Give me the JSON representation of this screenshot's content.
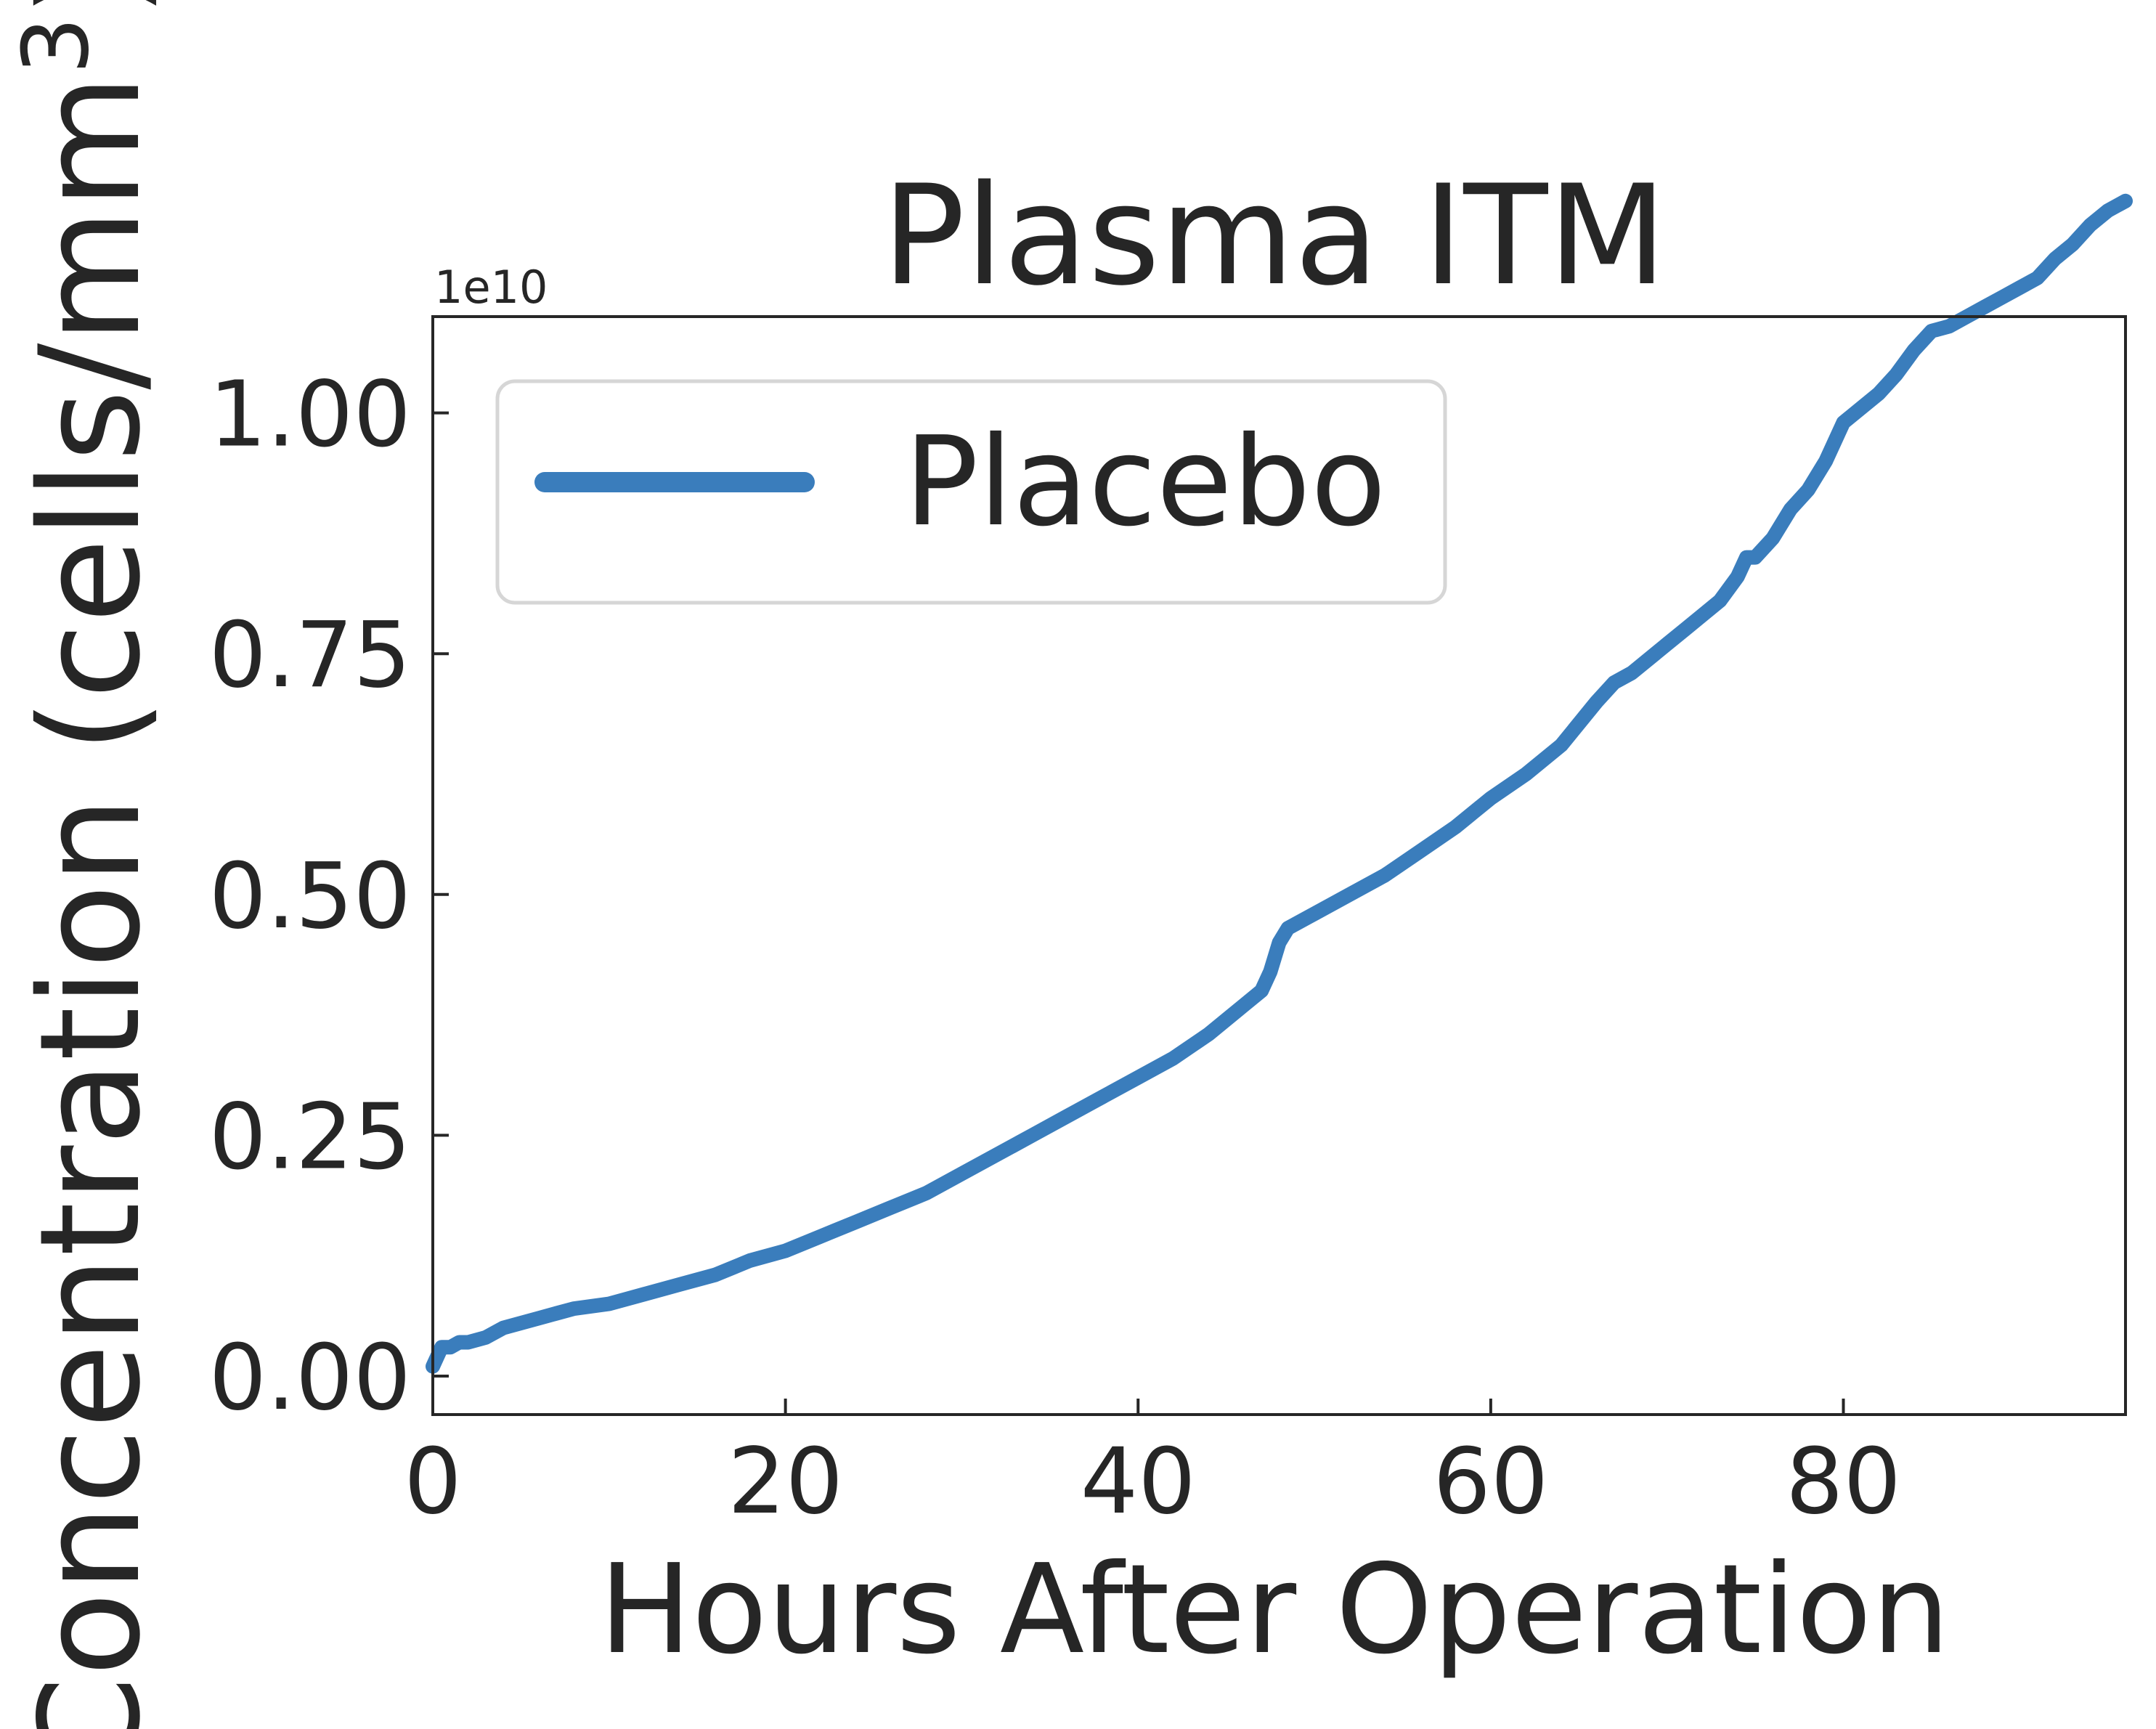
{
  "chart_data": {
    "type": "line",
    "title": "Plasma ITM",
    "xlabel": "Hours After Operation",
    "ylabel": "Concentration (cells/mm",
    "ylabel_superscript": "3",
    "ylabel_suffix": ")",
    "y_offset_text": "1e10",
    "y_scale_factor": 10000000000,
    "xlim": [
      0,
      96
    ],
    "ylim": [
      -0.04,
      1.1
    ],
    "xticks": [
      0,
      20,
      40,
      60,
      80
    ],
    "xtick_labels": [
      "0",
      "20",
      "40",
      "60",
      "80"
    ],
    "yticks": [
      0.0,
      0.25,
      0.5,
      0.75,
      1.0
    ],
    "ytick_labels": [
      "0.00",
      "0.25",
      "0.50",
      "0.75",
      "1.00"
    ],
    "grid": false,
    "legend_position": "upper-left",
    "series": [
      {
        "name": "Placebo",
        "color": "#3a7dbc",
        "x": [
          0,
          0.5,
          1,
          1.5,
          2,
          3,
          4,
          5,
          6,
          7,
          8,
          10,
          12,
          14,
          16,
          18,
          20,
          22,
          24,
          26,
          28,
          30,
          32,
          34,
          36,
          38,
          40,
          42,
          44,
          46,
          47,
          47.5,
          48,
          48.5,
          50,
          52,
          54,
          56,
          58,
          60,
          62,
          64,
          66,
          67,
          68,
          70,
          71,
          72,
          73,
          74,
          74.5,
          75,
          76,
          77,
          78,
          79,
          80,
          81,
          82,
          83,
          84,
          85,
          86,
          87,
          88,
          89,
          90,
          91,
          92,
          93,
          94,
          95,
          96
        ],
        "y": [
          0.01,
          0.03,
          0.03,
          0.035,
          0.035,
          0.04,
          0.05,
          0.055,
          0.06,
          0.065,
          0.07,
          0.075,
          0.085,
          0.095,
          0.105,
          0.12,
          0.13,
          0.145,
          0.16,
          0.175,
          0.19,
          0.21,
          0.23,
          0.25,
          0.27,
          0.29,
          0.31,
          0.33,
          0.355,
          0.385,
          0.4,
          0.42,
          0.45,
          0.465,
          0.48,
          0.5,
          0.52,
          0.545,
          0.57,
          0.6,
          0.625,
          0.655,
          0.7,
          0.72,
          0.73,
          0.76,
          0.775,
          0.79,
          0.805,
          0.83,
          0.85,
          0.85,
          0.87,
          0.9,
          0.92,
          0.95,
          0.99,
          1.005,
          1.02,
          1.04,
          1.065,
          1.085,
          1.09,
          1.1,
          1.11,
          1.12,
          1.13,
          1.14,
          1.16,
          1.175,
          1.195,
          1.21,
          1.22
        ]
      }
    ]
  }
}
